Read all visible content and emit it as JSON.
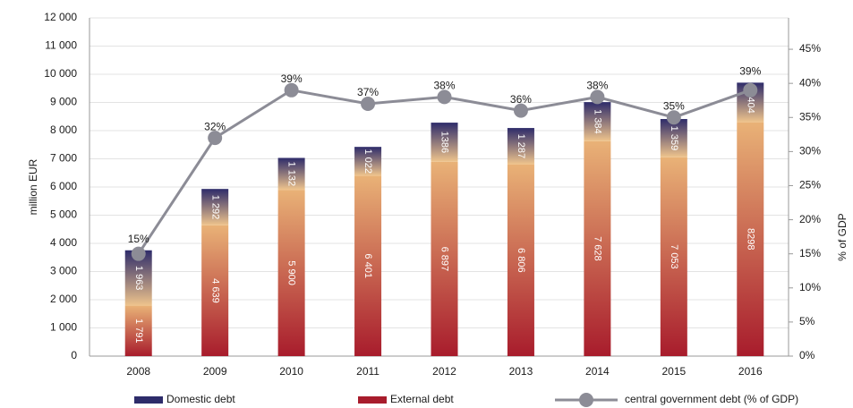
{
  "chart_data": {
    "type": "stacked-bar-line",
    "categories": [
      "2008",
      "2009",
      "2010",
      "2011",
      "2012",
      "2013",
      "2014",
      "2015",
      "2016"
    ],
    "series": [
      {
        "name": "External debt",
        "color": "#a81c2c",
        "values": [
          1791,
          4639,
          5900,
          6401,
          6897,
          6806,
          7628,
          7053,
          8298
        ],
        "value_labels": [
          "1 791",
          "4 639",
          "5 900",
          "6 401",
          "6 897",
          "6 806",
          "7 628",
          "7 053",
          "8298"
        ]
      },
      {
        "name": "Domestic debt",
        "color": "#2e2c6a",
        "values": [
          1963,
          1292,
          1132,
          1022,
          1386,
          1287,
          1384,
          1359,
          1404
        ],
        "value_labels": [
          "1 963",
          "1 292",
          "1 132",
          "1 022",
          "1386",
          "1 287",
          "1 384",
          "1 359",
          "1404"
        ]
      },
      {
        "name": "central government debt (% of GDP)",
        "color": "#8c8c96",
        "axis": "y2",
        "type": "line",
        "values": [
          15,
          32,
          39,
          37,
          38,
          36,
          38,
          35,
          39
        ],
        "value_labels": [
          "15%",
          "32%",
          "39%",
          "37%",
          "38%",
          "36%",
          "38%",
          "35%",
          "39%"
        ]
      }
    ],
    "y_label": "million EUR",
    "y2_label": "% of GDP",
    "ylim": [
      0,
      12000
    ],
    "yticks": [
      0,
      {
        "value": 1000,
        "label": "1 000"
      },
      {
        "value": 2000,
        "label": "2 000"
      },
      {
        "value": 3000,
        "label": "3 000"
      },
      {
        "value": 4000,
        "label": "4 000"
      },
      {
        "value": 5000,
        "label": "5 000"
      },
      {
        "value": 6000,
        "label": "6 000"
      },
      {
        "value": 7000,
        "label": "7 000"
      },
      {
        "value": 8000,
        "label": "8 000"
      },
      {
        "value": 9000,
        "label": "9 000"
      },
      {
        "value": 10000,
        "label": "10 000"
      },
      {
        "value": 11000,
        "label": "11 000"
      },
      {
        "value": 12000,
        "label": "12 000"
      }
    ],
    "y2lim": [
      0,
      49.6
    ],
    "y2ticks": [
      {
        "value": 0,
        "label": "0%"
      },
      {
        "value": 5,
        "label": "5%"
      },
      {
        "value": 10,
        "label": "10%"
      },
      {
        "value": 15,
        "label": "15%"
      },
      {
        "value": 20,
        "label": "20%"
      },
      {
        "value": 25,
        "label": "25%"
      },
      {
        "value": 30,
        "label": "30%"
      },
      {
        "value": 35,
        "label": "35%"
      },
      {
        "value": 40,
        "label": "40%"
      },
      {
        "value": 45,
        "label": "45%"
      }
    ],
    "grid": true,
    "legend": "bottom"
  }
}
